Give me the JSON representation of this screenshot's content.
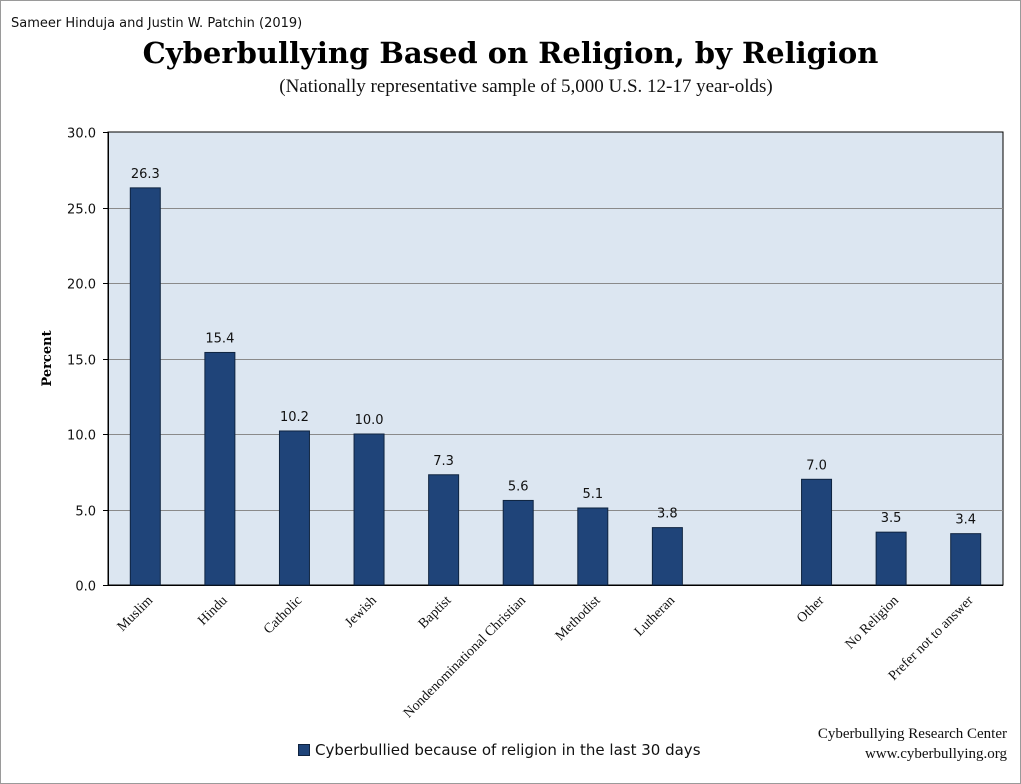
{
  "source": "Sameer Hinduja and Justin W. Patchin (2019)",
  "credit": {
    "line1": "Cyberbullying Research Center",
    "line2": "www.cyberbullying.org"
  },
  "colors": {
    "bar": "#1f4479",
    "bar_border": "#0f2440",
    "plot_bg": "#dce6f1",
    "grid": "#8a8a8a"
  },
  "chart_data": {
    "type": "bar",
    "title": "Cyberbullying Based on Religion, by Religion",
    "subtitle": "(Nationally representative sample of 5,000 U.S. 12-17 year-olds)",
    "xlabel": "",
    "ylabel": "Percent",
    "ylim": [
      0,
      30
    ],
    "yticks": [
      "0.0",
      "5.0",
      "10.0",
      "15.0",
      "20.0",
      "25.0",
      "30.0"
    ],
    "grid": true,
    "legend_position": "bottom",
    "categories": [
      "Muslim",
      "Hindu",
      "Catholic",
      "Jewish",
      "Baptist",
      "Nondenominational Christian",
      "Methodist",
      "Lutheran",
      "",
      "Other",
      "No Religion",
      "Prefer not to answer"
    ],
    "series": [
      {
        "name": "Cyberbullied because of religion in the last 30 days",
        "values": [
          26.3,
          15.4,
          10.2,
          10.0,
          7.3,
          5.6,
          5.1,
          3.8,
          null,
          7.0,
          3.5,
          3.4
        ],
        "labels": [
          "26.3",
          "15.4",
          "10.2",
          "10.0",
          "7.3",
          "5.6",
          "5.1",
          "3.8",
          "",
          "7.0",
          "3.5",
          "3.4"
        ]
      }
    ]
  }
}
